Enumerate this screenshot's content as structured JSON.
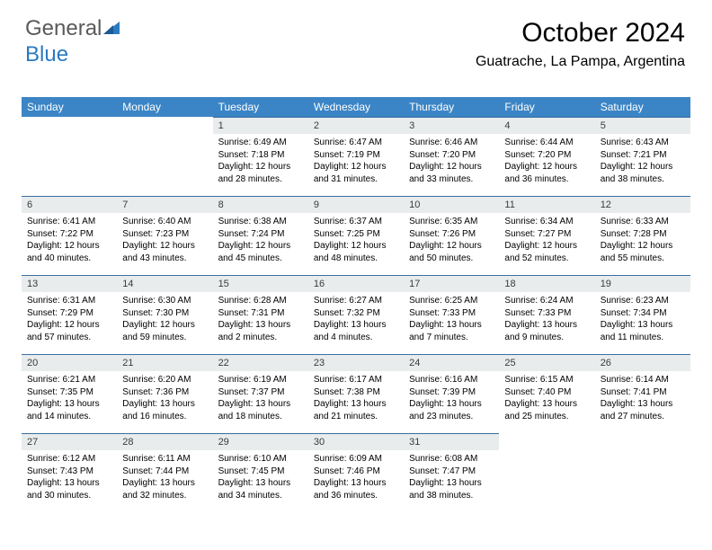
{
  "logo": {
    "text1": "General",
    "text2": "Blue"
  },
  "title": "October 2024",
  "location": "Guatrache, La Pampa, Argentina",
  "colors": {
    "header_bg": "#3b85c6",
    "header_text": "#ffffff",
    "daynum_bg": "#e9eced",
    "daynum_border": "#3b6fa0",
    "body_text": "#000000",
    "logo_gray": "#5a5a5a",
    "logo_blue": "#2b7ac0"
  },
  "weekdays": [
    "Sunday",
    "Monday",
    "Tuesday",
    "Wednesday",
    "Thursday",
    "Friday",
    "Saturday"
  ],
  "weeks": [
    [
      null,
      null,
      {
        "n": "1",
        "sr": "6:49 AM",
        "ss": "7:18 PM",
        "dl": "12 hours and 28 minutes."
      },
      {
        "n": "2",
        "sr": "6:47 AM",
        "ss": "7:19 PM",
        "dl": "12 hours and 31 minutes."
      },
      {
        "n": "3",
        "sr": "6:46 AM",
        "ss": "7:20 PM",
        "dl": "12 hours and 33 minutes."
      },
      {
        "n": "4",
        "sr": "6:44 AM",
        "ss": "7:20 PM",
        "dl": "12 hours and 36 minutes."
      },
      {
        "n": "5",
        "sr": "6:43 AM",
        "ss": "7:21 PM",
        "dl": "12 hours and 38 minutes."
      }
    ],
    [
      {
        "n": "6",
        "sr": "6:41 AM",
        "ss": "7:22 PM",
        "dl": "12 hours and 40 minutes."
      },
      {
        "n": "7",
        "sr": "6:40 AM",
        "ss": "7:23 PM",
        "dl": "12 hours and 43 minutes."
      },
      {
        "n": "8",
        "sr": "6:38 AM",
        "ss": "7:24 PM",
        "dl": "12 hours and 45 minutes."
      },
      {
        "n": "9",
        "sr": "6:37 AM",
        "ss": "7:25 PM",
        "dl": "12 hours and 48 minutes."
      },
      {
        "n": "10",
        "sr": "6:35 AM",
        "ss": "7:26 PM",
        "dl": "12 hours and 50 minutes."
      },
      {
        "n": "11",
        "sr": "6:34 AM",
        "ss": "7:27 PM",
        "dl": "12 hours and 52 minutes."
      },
      {
        "n": "12",
        "sr": "6:33 AM",
        "ss": "7:28 PM",
        "dl": "12 hours and 55 minutes."
      }
    ],
    [
      {
        "n": "13",
        "sr": "6:31 AM",
        "ss": "7:29 PM",
        "dl": "12 hours and 57 minutes."
      },
      {
        "n": "14",
        "sr": "6:30 AM",
        "ss": "7:30 PM",
        "dl": "12 hours and 59 minutes."
      },
      {
        "n": "15",
        "sr": "6:28 AM",
        "ss": "7:31 PM",
        "dl": "13 hours and 2 minutes."
      },
      {
        "n": "16",
        "sr": "6:27 AM",
        "ss": "7:32 PM",
        "dl": "13 hours and 4 minutes."
      },
      {
        "n": "17",
        "sr": "6:25 AM",
        "ss": "7:33 PM",
        "dl": "13 hours and 7 minutes."
      },
      {
        "n": "18",
        "sr": "6:24 AM",
        "ss": "7:33 PM",
        "dl": "13 hours and 9 minutes."
      },
      {
        "n": "19",
        "sr": "6:23 AM",
        "ss": "7:34 PM",
        "dl": "13 hours and 11 minutes."
      }
    ],
    [
      {
        "n": "20",
        "sr": "6:21 AM",
        "ss": "7:35 PM",
        "dl": "13 hours and 14 minutes."
      },
      {
        "n": "21",
        "sr": "6:20 AM",
        "ss": "7:36 PM",
        "dl": "13 hours and 16 minutes."
      },
      {
        "n": "22",
        "sr": "6:19 AM",
        "ss": "7:37 PM",
        "dl": "13 hours and 18 minutes."
      },
      {
        "n": "23",
        "sr": "6:17 AM",
        "ss": "7:38 PM",
        "dl": "13 hours and 21 minutes."
      },
      {
        "n": "24",
        "sr": "6:16 AM",
        "ss": "7:39 PM",
        "dl": "13 hours and 23 minutes."
      },
      {
        "n": "25",
        "sr": "6:15 AM",
        "ss": "7:40 PM",
        "dl": "13 hours and 25 minutes."
      },
      {
        "n": "26",
        "sr": "6:14 AM",
        "ss": "7:41 PM",
        "dl": "13 hours and 27 minutes."
      }
    ],
    [
      {
        "n": "27",
        "sr": "6:12 AM",
        "ss": "7:43 PM",
        "dl": "13 hours and 30 minutes."
      },
      {
        "n": "28",
        "sr": "6:11 AM",
        "ss": "7:44 PM",
        "dl": "13 hours and 32 minutes."
      },
      {
        "n": "29",
        "sr": "6:10 AM",
        "ss": "7:45 PM",
        "dl": "13 hours and 34 minutes."
      },
      {
        "n": "30",
        "sr": "6:09 AM",
        "ss": "7:46 PM",
        "dl": "13 hours and 36 minutes."
      },
      {
        "n": "31",
        "sr": "6:08 AM",
        "ss": "7:47 PM",
        "dl": "13 hours and 38 minutes."
      },
      null,
      null
    ]
  ],
  "labels": {
    "sunrise": "Sunrise:",
    "sunset": "Sunset:",
    "daylight": "Daylight:"
  }
}
